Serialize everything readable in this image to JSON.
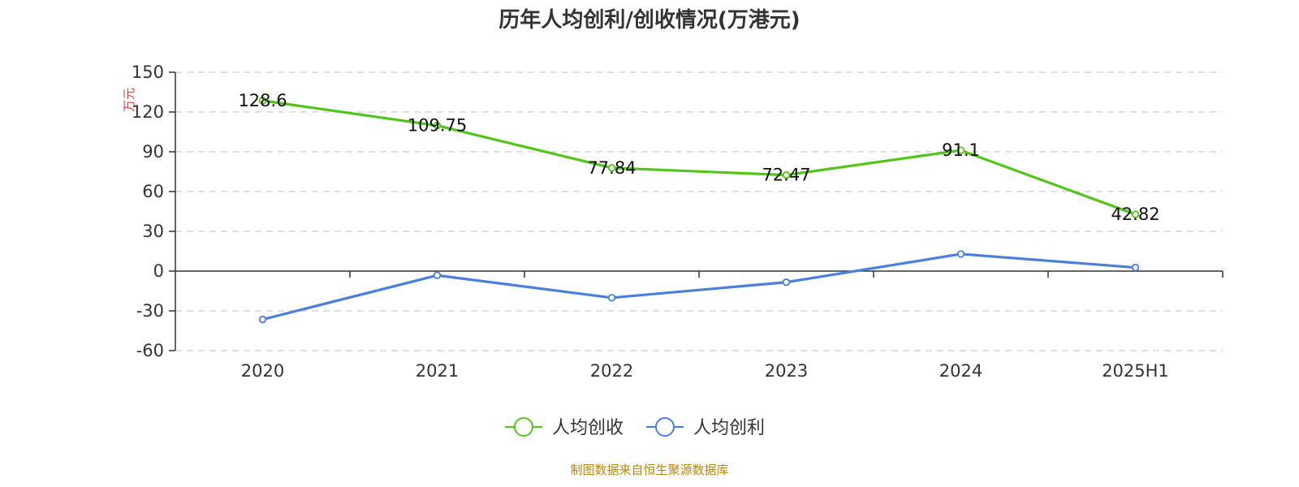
{
  "chart_data": {
    "type": "line",
    "title": "历年人均创利/创收情况(万港元)",
    "ylabel": "万元",
    "categories": [
      "2020",
      "2021",
      "2022",
      "2023",
      "2024",
      "2025H1"
    ],
    "ylim": [
      -60,
      150
    ],
    "yticks": [
      150,
      120,
      90,
      60,
      30,
      0,
      -30,
      -60
    ],
    "grid": true,
    "legend_position": "bottom",
    "series": [
      {
        "name": "人均创收",
        "color": "#52c41a",
        "values": [
          128.6,
          109.75,
          77.84,
          72.47,
          91.1,
          42.82
        ],
        "labels": [
          "128.6",
          "109.75",
          "77.84",
          "72.47",
          "91.1",
          "42.82"
        ]
      },
      {
        "name": "人均创利",
        "color": "#4a7fdc",
        "values": [
          -36.5,
          -3.2,
          -20.1,
          -8.4,
          12.9,
          2.7
        ],
        "labels": null
      }
    ],
    "source": "制图数据来自恒生聚源数据库"
  }
}
